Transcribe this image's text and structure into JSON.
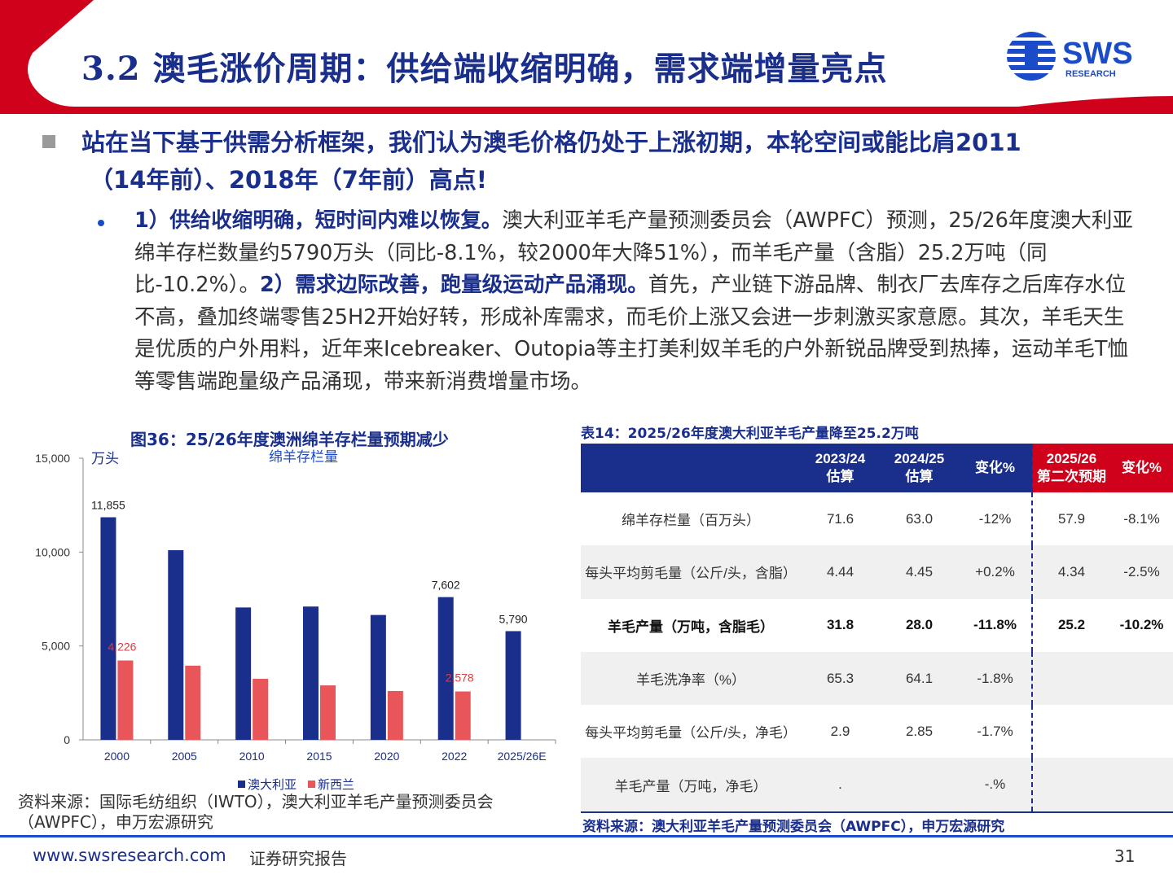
{
  "header": {
    "title": "3.2 澳毛涨价周期：供给端收缩明确，需求端增量亮点",
    "logo_text": "SWS",
    "logo_subtext": "RESEARCH",
    "colors": {
      "red": "#d0021b",
      "navy": "#1a2e8c",
      "blue": "#1a4bc9"
    }
  },
  "main_bullet": {
    "line1": "站在当下基于供需分析框架，我们认为澳毛价格仍处于上涨初期，本轮空间或能比肩2011",
    "line2": "（14年前）、2018年（7年前）高点!"
  },
  "sub_bullet": {
    "bold1": "1）供给收缩明确，短时间内难以恢复。",
    "text1": "澳大利亚羊毛产量预测委员会（AWPFC）预测，25/26年度澳大利亚绵羊存栏数量约5790万头（同比-8.1%，较2000年大降51%），而羊毛产量（含脂）25.2万吨（同比-10.2%）。",
    "bold2": "2）需求边际改善，跑量级运动产品涌现。",
    "text2": "首先，产业链下游品牌、制衣厂去库存之后库存水位不高，叠加终端零售25H2开始好转，形成补库需求，而毛价上涨又会进一步刺激买家意愿。其次，羊毛天生是优质的户外用料，近年来Icebreaker、Outopia等主打美利奴羊毛的户外新锐品牌受到热捧，运动羊毛T恤等零售端跑量级产品涌现，带来新消费增量市场。"
  },
  "chart": {
    "title": "图36：25/26年度澳洲绵羊存栏量预期减少",
    "source_line1": "资料来源：国际毛纺组织（IWTO），澳大利亚羊毛产量预测委员会",
    "source_line2": "（AWPFC），申万宏源研究"
  },
  "chart_data": {
    "type": "bar",
    "title": "",
    "subtitle": "绵羊存栏量",
    "ylabel": "万头",
    "xlabel": "",
    "ylim": [
      0,
      15000
    ],
    "yticks": [
      0,
      5000,
      10000,
      15000
    ],
    "ytick_labels": [
      "0",
      "5,000",
      "10,000",
      "15,000"
    ],
    "categories": [
      "2000",
      "2005",
      "2010",
      "2015",
      "2020",
      "2022",
      "2025/26E"
    ],
    "series": [
      {
        "name": "澳大利亚",
        "color": "#1a2e8c",
        "values": [
          11855,
          10100,
          7050,
          7100,
          6650,
          7602,
          5790
        ]
      },
      {
        "name": "新西兰",
        "color": "#e8565a",
        "values": [
          4226,
          3950,
          3250,
          2900,
          2600,
          2578,
          null
        ]
      }
    ],
    "data_labels": [
      {
        "series": 0,
        "index": 0,
        "text": "11,855",
        "color": "#222"
      },
      {
        "series": 0,
        "index": 5,
        "text": "7,602",
        "color": "#222"
      },
      {
        "series": 0,
        "index": 6,
        "text": "5,790",
        "color": "#222"
      },
      {
        "series": 1,
        "index": 0,
        "text": "4,226",
        "color": "#e23a3f"
      },
      {
        "series": 1,
        "index": 5,
        "text": "2,578",
        "color": "#e23a3f"
      }
    ],
    "legend": "bottom-center",
    "grid": false
  },
  "table": {
    "title": "表14：2025/26年度澳大利亚羊毛产量降至25.2万吨",
    "headers": [
      {
        "l1": "",
        "l2": ""
      },
      {
        "l1": "2023/24",
        "l2": "估算"
      },
      {
        "l1": "2024/25",
        "l2": "估算"
      },
      {
        "l1": "变化%",
        "l2": ""
      },
      {
        "l1": "2025/26",
        "l2": "第二次预期"
      },
      {
        "l1": "变化%",
        "l2": ""
      }
    ],
    "rows": [
      [
        "绵羊存栏量（百万头）",
        "71.6",
        "63.0",
        "-12%",
        "57.9",
        "-8.1%"
      ],
      [
        "每头平均剪毛量（公斤/头，含脂）",
        "4.44",
        "4.45",
        "+0.2%",
        "4.34",
        "-2.5%"
      ],
      [
        "羊毛产量（万吨，含脂毛）",
        "31.8",
        "28.0",
        "-11.8%",
        "25.2",
        "-10.2%"
      ],
      [
        "羊毛洗净率（%）",
        "65.3",
        "64.1",
        "-1.8%",
        "",
        ""
      ],
      [
        "每头平均剪毛量（公斤/头，净毛）",
        "2.9",
        "2.85",
        "-1.7%",
        "",
        ""
      ],
      [
        "羊毛产量（万吨，净毛）",
        ".",
        "",
        "-.%",
        "",
        ""
      ]
    ],
    "source": "资料来源：澳大利亚羊毛产量预测委员会（AWPFC），申万宏源研究"
  },
  "footer": {
    "site": "www.swsresearch.com",
    "label": "证券研究报告",
    "page": "31"
  }
}
